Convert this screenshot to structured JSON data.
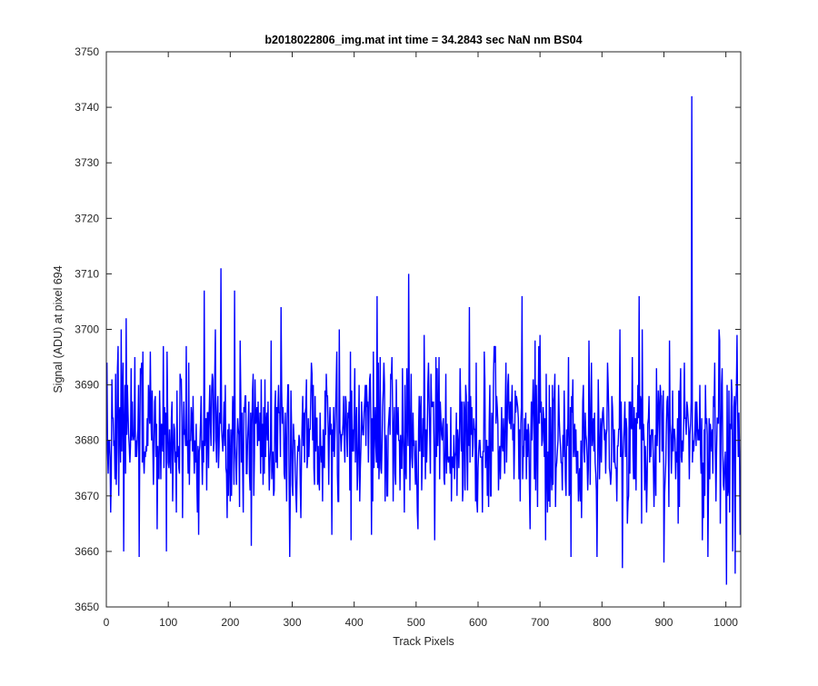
{
  "chart_data": {
    "type": "line",
    "title": "b2018022806_img.mat int time = 34.2843 sec  NaN nm BS04",
    "xlabel": "Track Pixels",
    "ylabel": "Signal (ADU) at pixel 694",
    "xlim": [
      0,
      1024
    ],
    "ylim": [
      3650,
      3750
    ],
    "xticks": [
      0,
      100,
      200,
      300,
      400,
      500,
      600,
      700,
      800,
      900,
      1000
    ],
    "yticks": [
      3650,
      3660,
      3670,
      3680,
      3690,
      3700,
      3710,
      3720,
      3730,
      3740,
      3750
    ],
    "grid": false,
    "legend": false,
    "colors": {
      "line": "#0000ff",
      "axes": "#262626",
      "background": "#ffffff"
    },
    "series": [
      {
        "approximate": true,
        "x_start": 1,
        "x_step": 1,
        "base_level": 3681,
        "noise_sd": 7,
        "extremes": [
          {
            "x": 9,
            "y": 3691
          },
          {
            "x": 18,
            "y": 3693
          },
          {
            "x": 24,
            "y": 3700
          },
          {
            "x": 28,
            "y": 3660
          },
          {
            "x": 32,
            "y": 3702
          },
          {
            "x": 46,
            "y": 3695
          },
          {
            "x": 53,
            "y": 3659
          },
          {
            "x": 97,
            "y": 3660
          },
          {
            "x": 149,
            "y": 3663
          },
          {
            "x": 158,
            "y": 3707
          },
          {
            "x": 176,
            "y": 3700
          },
          {
            "x": 185,
            "y": 3711
          },
          {
            "x": 207,
            "y": 3707
          },
          {
            "x": 234,
            "y": 3661
          },
          {
            "x": 282,
            "y": 3704
          },
          {
            "x": 296,
            "y": 3659
          },
          {
            "x": 376,
            "y": 3700
          },
          {
            "x": 395,
            "y": 3662
          },
          {
            "x": 437,
            "y": 3706
          },
          {
            "x": 488,
            "y": 3710
          },
          {
            "x": 513,
            "y": 3699
          },
          {
            "x": 586,
            "y": 3704
          },
          {
            "x": 671,
            "y": 3706
          },
          {
            "x": 700,
            "y": 3699
          },
          {
            "x": 750,
            "y": 3659
          },
          {
            "x": 779,
            "y": 3698
          },
          {
            "x": 792,
            "y": 3659
          },
          {
            "x": 829,
            "y": 3700
          },
          {
            "x": 833,
            "y": 3657
          },
          {
            "x": 860,
            "y": 3706
          },
          {
            "x": 865,
            "y": 3700
          },
          {
            "x": 900,
            "y": 3658
          },
          {
            "x": 945,
            "y": 3742
          },
          {
            "x": 971,
            "y": 3659
          },
          {
            "x": 989,
            "y": 3700
          },
          {
            "x": 1001,
            "y": 3654
          },
          {
            "x": 1011,
            "y": 3660
          },
          {
            "x": 1015,
            "y": 3656
          },
          {
            "x": 1018,
            "y": 3699
          },
          {
            "x": 1023,
            "y": 3663
          }
        ]
      }
    ]
  }
}
